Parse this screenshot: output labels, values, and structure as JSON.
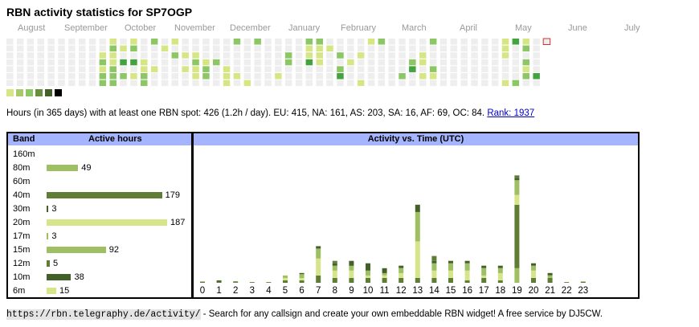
{
  "title": "RBN activity statistics for SP7OGP",
  "months": [
    "August",
    "September",
    "October",
    "November",
    "December",
    "January",
    "February",
    "March",
    "April",
    "May",
    "June",
    "July"
  ],
  "heatmap": {
    "weeks": 53,
    "first_col_start_row": 0,
    "last_col_rows": 1,
    "colors": [
      "#eeeeee",
      "#d6e685",
      "#8cc665",
      "#44a340",
      "#1e6823",
      "#000000"
    ],
    "cells": "0000000000000000000000000000000000000000000000000000000000000000012122121122201030201203010000112220001000100000102000000101000012110000122000020000000111200001000000012000000000000000000100022000000000021130002111000010000000202300001000001000110000002000000000000000000200002300001101020002100000000000000000000000000000000000000000001110001300000212021200000030011100011010000000002000010000000000000101020000001000003101001200010000000000000000000000011000000000000000000000000000000000"
  },
  "legend_colors": [
    "#d6e685",
    "#a8c96a",
    "#8cc665",
    "#6a8f3c",
    "#44602a",
    "#000000"
  ],
  "summary": {
    "text": "Hours (in 365 days) with at least one RBN spot: 426 (1.2h / day). EU: 415, NA: 161, AS: 203, SA: 16, AF: 69, OC: 84.",
    "rank_label": "Rank: 1937"
  },
  "bands": {
    "header_band": "Band",
    "header_hours": "Active hours",
    "max": 187,
    "rows": [
      {
        "name": "160m",
        "value": null,
        "color": "#9ebf62"
      },
      {
        "name": "80m",
        "value": 49,
        "color": "#9ebf62"
      },
      {
        "name": "60m",
        "value": null,
        "color": "#9ebf62"
      },
      {
        "name": "40m",
        "value": 179,
        "color": "#5f7d35"
      },
      {
        "name": "30m",
        "value": 3,
        "color": "#44602a"
      },
      {
        "name": "20m",
        "value": 187,
        "color": "#d7e58a"
      },
      {
        "name": "17m",
        "value": 3,
        "color": "#9ebf62"
      },
      {
        "name": "15m",
        "value": 92,
        "color": "#9ebf62"
      },
      {
        "name": "12m",
        "value": 5,
        "color": "#5f7d35"
      },
      {
        "name": "10m",
        "value": 38,
        "color": "#44602a"
      },
      {
        "name": "6m",
        "value": 15,
        "color": "#d7e58a"
      }
    ]
  },
  "time_chart": {
    "title": "Activity vs. Time (UTC)",
    "max": 52,
    "hours": [
      "0",
      "1",
      "2",
      "3",
      "4",
      "5",
      "6",
      "7",
      "8",
      "9",
      "10",
      "11",
      "12",
      "13",
      "14",
      "15",
      "16",
      "17",
      "18",
      "19",
      "20",
      "21",
      "22",
      "23"
    ],
    "segment_colors": [
      "#9ebf62",
      "#5f7d35",
      "#d7e58a",
      "#9ebf62",
      "#44602a",
      "#5f7d35"
    ],
    "stacks": [
      [
        0,
        0.5,
        0,
        0,
        0,
        0
      ],
      [
        0,
        0.5,
        0,
        0,
        0.5,
        0
      ],
      [
        0,
        0.3,
        0,
        0,
        0,
        0.3
      ],
      [
        0,
        0.3,
        0,
        0,
        0,
        0
      ],
      [
        0,
        0.3,
        0,
        0,
        0,
        0
      ],
      [
        0,
        1,
        1,
        1,
        0,
        0
      ],
      [
        0,
        1,
        1,
        1.5,
        0.5,
        0
      ],
      [
        0,
        3,
        7,
        4,
        1,
        0
      ],
      [
        0,
        2,
        3,
        2,
        1,
        1
      ],
      [
        0,
        2,
        3,
        2,
        2,
        0
      ],
      [
        0,
        2,
        1,
        2,
        3,
        0
      ],
      [
        0,
        2,
        1,
        1,
        2,
        0
      ],
      [
        0,
        2,
        2,
        2,
        1,
        0
      ],
      [
        0,
        2,
        15,
        12,
        3,
        0
      ],
      [
        0,
        2,
        3,
        3,
        1,
        2
      ],
      [
        0,
        2,
        3,
        3,
        1,
        0
      ],
      [
        0,
        1,
        4,
        3,
        1,
        0
      ],
      [
        0,
        2,
        1,
        3,
        1,
        0
      ],
      [
        0,
        1,
        3,
        2,
        1,
        0
      ],
      [
        6,
        26,
        4,
        6,
        1,
        1
      ],
      [
        0,
        2,
        3,
        2,
        1,
        0
      ],
      [
        0,
        2,
        0,
        1,
        1,
        0
      ],
      [
        0,
        0.3,
        0,
        0,
        0,
        0
      ],
      [
        0,
        0.5,
        0,
        0,
        0,
        0
      ]
    ]
  },
  "footer": {
    "url": "https://rbn.telegraphy.de/activity/",
    "text": " - Search for any callsign and create your own embeddable RBN widget! A free service by DJ5CW."
  }
}
